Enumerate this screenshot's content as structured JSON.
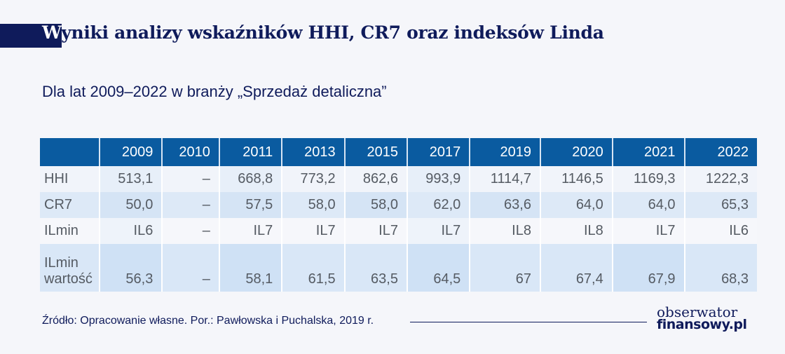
{
  "header": {
    "title_first_letter": "W",
    "title_rest": "yniki analizy wskaźników HHI, CR7 oraz indeksów Linda",
    "subtitle": "Dla lat 2009–2022 w branży „Sprzedaż detaliczna”"
  },
  "table": {
    "columns": [
      "",
      "2009",
      "2010",
      "2011",
      "2013",
      "2015",
      "2017",
      "2019",
      "2020",
      "2021",
      "2022"
    ],
    "rows": [
      {
        "label": "HHI",
        "values": [
          "513,1",
          "–",
          "668,8",
          "773,2",
          "862,6",
          "993,9",
          "1114,7",
          "1146,5",
          "1169,3",
          "1222,3"
        ]
      },
      {
        "label": "CR7",
        "values": [
          "50,0",
          "–",
          "57,5",
          "58,0",
          "58,0",
          "62,0",
          "63,6",
          "64,0",
          "64,0",
          "65,3"
        ]
      },
      {
        "label": "ILmin",
        "values": [
          "IL6",
          "–",
          "IL7",
          "IL7",
          "IL7",
          "IL7",
          "IL8",
          "IL8",
          "IL7",
          "IL6"
        ]
      },
      {
        "label_line1": "ILmin",
        "label_line2": "wartość",
        "values": [
          "56,3",
          "–",
          "58,1",
          "61,5",
          "63,5",
          "64,5",
          "67",
          "67,4",
          "67,9",
          "68,3"
        ]
      }
    ]
  },
  "footer": {
    "source": "Źródło: Opracowanie własne. Por.: Pawłowska i Puchalska, 2019 r.",
    "logo_line1": "obserwator",
    "logo_line2": "finansowy.pl"
  },
  "colors": {
    "navy": "#0f1b5b",
    "header_blue": "#0a5ba0"
  },
  "chart_data": {
    "type": "table",
    "title": "Wyniki analizy wskaźników HHI, CR7 oraz indeksów Linda",
    "subtitle": "Dla lat 2009–2022 w branży „Sprzedaż detaliczna”",
    "categories": [
      "2009",
      "2010",
      "2011",
      "2013",
      "2015",
      "2017",
      "2019",
      "2020",
      "2021",
      "2022"
    ],
    "series": [
      {
        "name": "HHI",
        "values": [
          513.1,
          null,
          668.8,
          773.2,
          862.6,
          993.9,
          1114.7,
          1146.5,
          1169.3,
          1222.3
        ]
      },
      {
        "name": "CR7",
        "values": [
          50.0,
          null,
          57.5,
          58.0,
          58.0,
          62.0,
          63.6,
          64.0,
          64.0,
          65.3
        ]
      },
      {
        "name": "ILmin",
        "values": [
          "IL6",
          null,
          "IL7",
          "IL7",
          "IL7",
          "IL7",
          "IL8",
          "IL8",
          "IL7",
          "IL6"
        ]
      },
      {
        "name": "ILmin wartość",
        "values": [
          56.3,
          null,
          58.1,
          61.5,
          63.5,
          64.5,
          67,
          67.4,
          67.9,
          68.3
        ]
      }
    ],
    "source": "Źródło: Opracowanie własne. Por.: Pawłowska i Puchalska, 2019 r."
  }
}
